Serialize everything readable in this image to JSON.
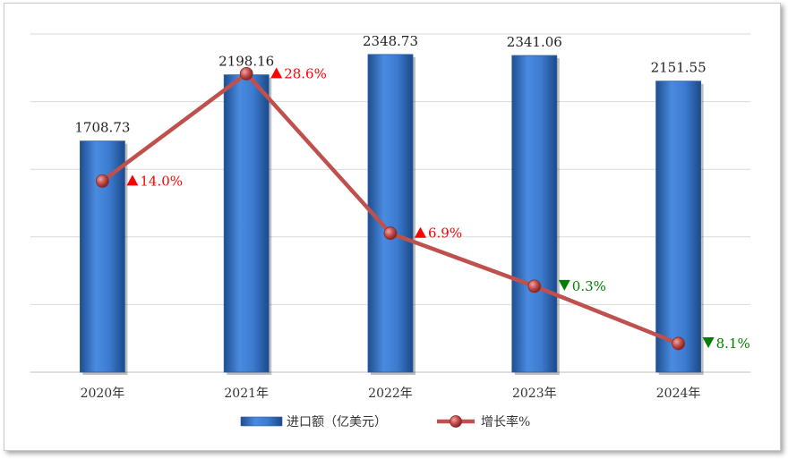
{
  "chart_data": {
    "type": "bar",
    "categories": [
      "2020年",
      "2021年",
      "2022年",
      "2023年",
      "2024年"
    ],
    "series": [
      {
        "name": "进口额（亿美元）",
        "type": "bar",
        "values": [
          1708.73,
          2198.16,
          2348.73,
          2341.06,
          2151.55
        ],
        "labels": [
          "1708.73",
          "2198.16",
          "2348.73",
          "2341.06",
          "2151.55"
        ],
        "color": "#3F7FCF"
      },
      {
        "name": "增长率%",
        "type": "line",
        "values": [
          14.0,
          28.6,
          6.9,
          -0.3,
          -8.1
        ],
        "labels": [
          "14.0%",
          "28.6%",
          "6.9%",
          "0.3%",
          "8.1%"
        ],
        "color": "#C0504D"
      }
    ],
    "bar_axis": {
      "min": 0,
      "max": 2500
    },
    "line_axis": {
      "min": -12,
      "max": 34
    },
    "grid": true,
    "legend": "bottom",
    "up_color": "#FF0000",
    "down_color": "#008000"
  }
}
